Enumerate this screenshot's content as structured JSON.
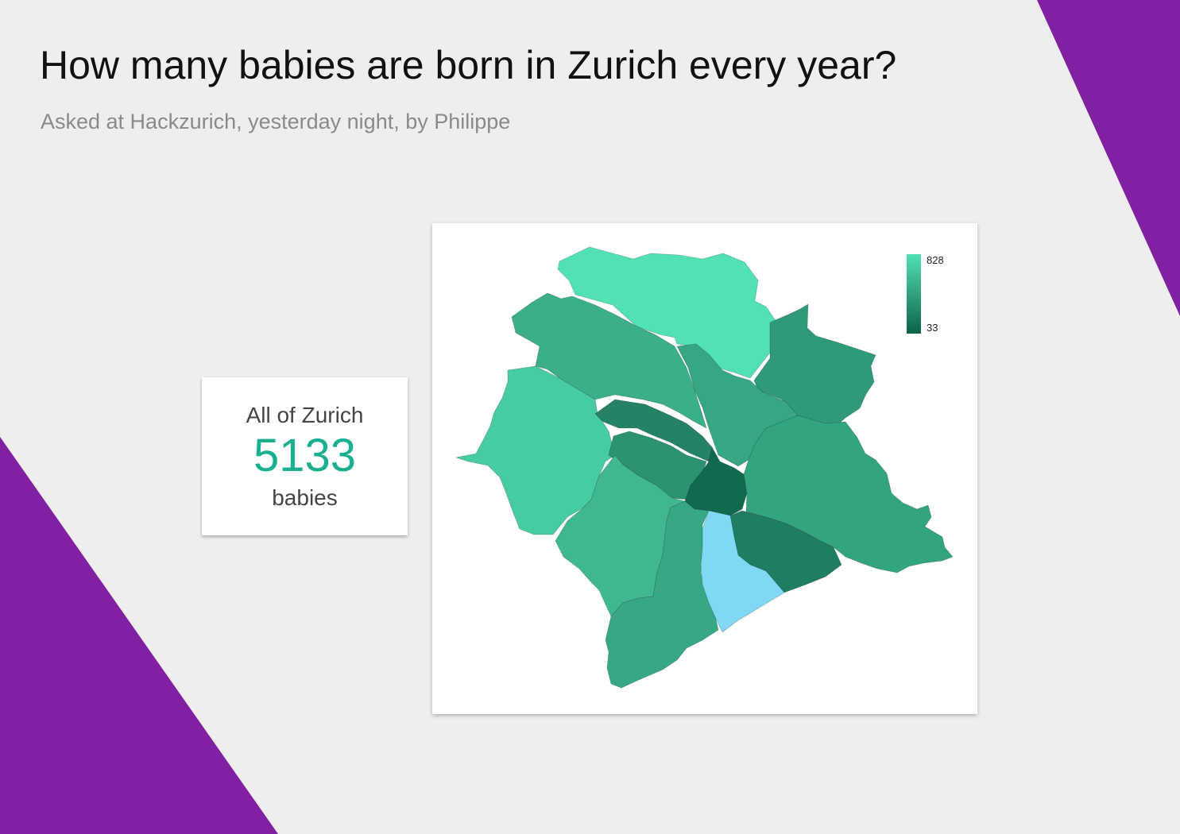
{
  "page": {
    "title": "How many babies are born in Zurich every year?",
    "subtitle": "Asked at Hackzurich, yesterday night, by Philippe"
  },
  "colors": {
    "background": "#eeeeee",
    "accent_purple": "#8120a1",
    "stat_value": "#1aaf8f",
    "scale_high": "#52e0b5",
    "scale_low": "#0d634a",
    "highlight": "#80d8f2"
  },
  "summary_card": {
    "label": "All of Zurich",
    "value": "5133",
    "unit": "babies"
  },
  "map": {
    "legend": {
      "max": "828",
      "min": "33"
    },
    "districts": [
      {
        "id": "north",
        "fill": "#52e0b5"
      },
      {
        "id": "northwest",
        "fill": "#3aaf8a"
      },
      {
        "id": "northeast",
        "fill": "#2f9a79"
      },
      {
        "id": "center-north",
        "fill": "#36a685"
      },
      {
        "id": "west",
        "fill": "#47cba3"
      },
      {
        "id": "diagonal-upper",
        "fill": "#258267"
      },
      {
        "id": "diagonal-lower",
        "fill": "#2c9272"
      },
      {
        "id": "center",
        "fill": "#0f6a4f"
      },
      {
        "id": "east",
        "fill": "#33a480"
      },
      {
        "id": "southwest-upper",
        "fill": "#3fb891"
      },
      {
        "id": "south-center",
        "fill": "#37a886"
      },
      {
        "id": "south-far",
        "fill": "#3aad89"
      },
      {
        "id": "southeast",
        "fill": "#1f7d61"
      },
      {
        "id": "lake-side",
        "fill": "#80d8f2"
      }
    ]
  }
}
